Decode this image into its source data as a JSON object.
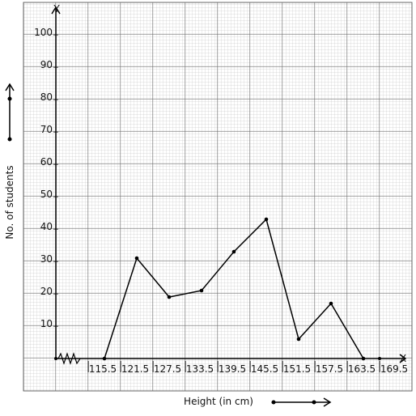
{
  "chart_data": {
    "type": "line",
    "x_label": "Height (in cm)",
    "y_label": "No. of students",
    "x_axis_name": "X",
    "y_axis_name": "Y",
    "x": [
      118.5,
      124.5,
      130.5,
      136.5,
      142.5,
      148.5,
      154.5,
      160.5,
      166.5
    ],
    "values": [
      0,
      31,
      19,
      21,
      33,
      43,
      6,
      17,
      0
    ],
    "color": "#000000",
    "xlim": [
      109.5,
      172.5
    ],
    "xticks": [
      115.5,
      121.5,
      127.5,
      133.5,
      139.5,
      145.5,
      151.5,
      157.5,
      163.5,
      169.5
    ],
    "ylim": [
      0,
      108
    ],
    "yticks": [
      10,
      20,
      30,
      40,
      50,
      60,
      70,
      80,
      90,
      100
    ]
  }
}
